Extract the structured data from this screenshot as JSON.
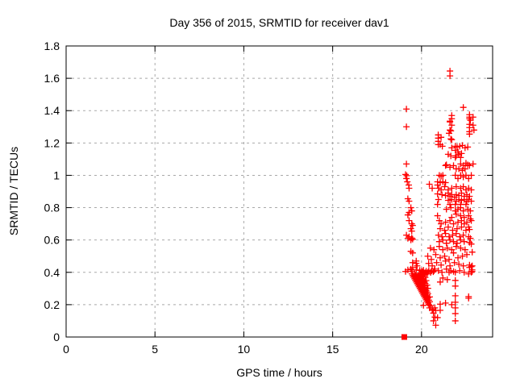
{
  "window_title": "gnuplot plot window",
  "colors": {
    "background": "#ffffff",
    "axis": "#000000",
    "grid": "#a9a9a9",
    "data": "#ff0000"
  },
  "chart_data": {
    "type": "scatter",
    "title": "Day 356 of 2015, SRMTID for receiver dav1",
    "xlabel": "GPS time / hours",
    "ylabel": "SRMTID / TECUs",
    "xlim": [
      0,
      24
    ],
    "ylim": [
      0,
      1.8
    ],
    "x_tick_values": [
      0,
      5,
      10,
      15,
      20
    ],
    "x_tick_labels": [
      "0",
      "5",
      "10",
      "15",
      "20"
    ],
    "y_tick_values": [
      0,
      0.2,
      0.4,
      0.6,
      0.8,
      1.0,
      1.2,
      1.4,
      1.6,
      1.8
    ],
    "y_tick_labels": [
      "0",
      "0.2",
      "0.4",
      "0.6",
      "0.8",
      "1",
      "1.2",
      "1.4",
      "1.6",
      "1.8"
    ],
    "grid": true,
    "legend_position": "none",
    "marker": {
      "shape": "plus",
      "color": "#ff0000",
      "size": 8
    },
    "square_marker": {
      "shape": "filled-square",
      "color": "#ff0000",
      "size": 7,
      "point": [
        19.03,
        0
      ]
    },
    "points": [
      [
        19.15,
        1.41
      ],
      [
        19.15,
        1.3
      ],
      [
        19.15,
        1.07
      ],
      [
        19.1,
        1.005
      ],
      [
        19.17,
        0.998
      ],
      [
        19.15,
        0.98
      ],
      [
        19.2,
        0.96
      ],
      [
        19.28,
        0.94
      ],
      [
        19.3,
        0.92
      ],
      [
        19.23,
        0.855
      ],
      [
        19.3,
        0.84
      ],
      [
        19.4,
        0.8
      ],
      [
        19.45,
        0.78
      ],
      [
        19.3,
        0.77
      ],
      [
        19.23,
        0.755
      ],
      [
        19.3,
        0.72
      ],
      [
        19.45,
        0.7
      ],
      [
        19.5,
        0.69
      ],
      [
        19.4,
        0.67
      ],
      [
        19.45,
        0.655
      ],
      [
        19.15,
        0.63
      ],
      [
        19.23,
        0.61
      ],
      [
        19.3,
        0.62
      ],
      [
        19.4,
        0.6
      ],
      [
        19.45,
        0.612
      ],
      [
        19.5,
        0.605
      ],
      [
        19.4,
        0.53
      ],
      [
        19.5,
        0.52
      ],
      [
        19.7,
        0.47
      ],
      [
        19.5,
        0.46
      ],
      [
        19.7,
        0.455
      ],
      [
        19.75,
        0.44
      ],
      [
        19.5,
        0.43
      ],
      [
        19.4,
        0.42
      ],
      [
        19.23,
        0.415
      ],
      [
        19.1,
        0.405
      ],
      [
        19.45,
        0.405
      ],
      [
        19.7,
        0.415
      ],
      [
        19.9,
        0.412
      ],
      [
        20.01,
        0.408
      ],
      [
        20.11,
        0.413
      ],
      [
        20.26,
        0.407
      ],
      [
        20.41,
        0.412
      ],
      [
        20.56,
        0.408
      ],
      [
        20.71,
        0.41
      ],
      [
        19.96,
        0.398
      ],
      [
        20.06,
        0.402
      ],
      [
        20.21,
        0.397
      ],
      [
        20.36,
        0.401
      ],
      [
        20.51,
        0.399
      ],
      [
        20.66,
        0.403
      ],
      [
        19.46,
        0.39
      ],
      [
        19.61,
        0.392
      ],
      [
        19.91,
        0.388
      ],
      [
        20.02,
        0.391
      ],
      [
        20.16,
        0.387
      ],
      [
        20.31,
        0.39
      ],
      [
        19.51,
        0.38
      ],
      [
        19.66,
        0.382
      ],
      [
        19.81,
        0.378
      ],
      [
        19.96,
        0.381
      ],
      [
        20.11,
        0.379
      ],
      [
        19.56,
        0.37
      ],
      [
        19.71,
        0.372
      ],
      [
        19.86,
        0.368
      ],
      [
        20.01,
        0.371
      ],
      [
        20.21,
        0.369
      ],
      [
        19.61,
        0.36
      ],
      [
        19.76,
        0.362
      ],
      [
        19.91,
        0.358
      ],
      [
        20.06,
        0.361
      ],
      [
        19.66,
        0.35
      ],
      [
        19.81,
        0.352
      ],
      [
        19.96,
        0.348
      ],
      [
        20.11,
        0.351
      ],
      [
        20.26,
        0.349
      ],
      [
        19.71,
        0.34
      ],
      [
        19.86,
        0.342
      ],
      [
        20.01,
        0.338
      ],
      [
        20.16,
        0.341
      ],
      [
        21.05,
        0.34
      ],
      [
        19.76,
        0.33
      ],
      [
        19.91,
        0.332
      ],
      [
        20.06,
        0.328
      ],
      [
        20.21,
        0.331
      ],
      [
        19.81,
        0.32
      ],
      [
        19.96,
        0.322
      ],
      [
        20.11,
        0.318
      ],
      [
        20.31,
        0.321
      ],
      [
        19.86,
        0.31
      ],
      [
        20.01,
        0.312
      ],
      [
        20.16,
        0.308
      ],
      [
        19.91,
        0.3
      ],
      [
        20.06,
        0.302
      ],
      [
        20.21,
        0.298
      ],
      [
        20.36,
        0.301
      ],
      [
        19.96,
        0.29
      ],
      [
        20.11,
        0.292
      ],
      [
        20.26,
        0.288
      ],
      [
        20.01,
        0.28
      ],
      [
        20.16,
        0.282
      ],
      [
        20.31,
        0.278
      ],
      [
        20.06,
        0.27
      ],
      [
        20.21,
        0.272
      ],
      [
        20.36,
        0.268
      ],
      [
        20.11,
        0.26
      ],
      [
        20.26,
        0.258
      ],
      [
        20.16,
        0.25
      ],
      [
        20.31,
        0.252
      ],
      [
        20.46,
        0.248
      ],
      [
        20.21,
        0.24
      ],
      [
        20.36,
        0.242
      ],
      [
        20.26,
        0.23
      ],
      [
        20.41,
        0.228
      ],
      [
        20.31,
        0.22
      ],
      [
        20.46,
        0.218
      ],
      [
        20.36,
        0.21
      ],
      [
        20.41,
        0.2
      ],
      [
        21.7,
        0.2
      ],
      [
        20.11,
        0.196
      ],
      [
        20.51,
        0.193
      ],
      [
        20.45,
        0.18
      ],
      [
        20.6,
        0.17
      ],
      [
        20.65,
        0.165
      ],
      [
        20.75,
        0.18
      ],
      [
        20.8,
        0.164
      ],
      [
        20.67,
        0.148
      ],
      [
        20.75,
        0.123
      ],
      [
        20.9,
        0.12
      ],
      [
        20.67,
        0.1
      ],
      [
        20.8,
        0.073
      ],
      [
        21.05,
        0.165
      ],
      [
        21.35,
        0.21
      ],
      [
        21.05,
        0.203
      ],
      [
        21.9,
        0.35
      ],
      [
        21.9,
        0.315
      ],
      [
        21.9,
        0.255
      ],
      [
        21.9,
        0.215
      ],
      [
        21.9,
        0.18
      ],
      [
        21.9,
        0.145
      ],
      [
        21.9,
        0.1
      ],
      [
        22.65,
        0.39
      ],
      [
        22.8,
        0.4
      ],
      [
        22.65,
        0.25
      ],
      [
        22.65,
        0.24
      ],
      [
        20.44,
        0.945
      ],
      [
        20.6,
        0.92
      ],
      [
        20.9,
        0.94
      ],
      [
        20.97,
        0.92
      ],
      [
        21.1,
        0.91
      ],
      [
        21.3,
        0.93
      ],
      [
        21.5,
        0.91
      ],
      [
        21.7,
        0.92
      ],
      [
        21.95,
        0.93
      ],
      [
        22.2,
        0.92
      ],
      [
        22.35,
        0.93
      ],
      [
        22.5,
        0.91
      ],
      [
        22.65,
        0.92
      ],
      [
        22.8,
        0.91
      ],
      [
        20.9,
        0.885
      ],
      [
        21.15,
        0.88
      ],
      [
        21.35,
        0.875
      ],
      [
        21.5,
        0.89
      ],
      [
        21.6,
        0.87
      ],
      [
        21.7,
        0.88
      ],
      [
        21.85,
        0.865
      ],
      [
        21.95,
        0.88
      ],
      [
        22.1,
        0.875
      ],
      [
        22.25,
        0.89
      ],
      [
        22.4,
        0.87
      ],
      [
        22.55,
        0.88
      ],
      [
        22.7,
        0.87
      ],
      [
        20.95,
        0.85
      ],
      [
        21.5,
        0.845
      ],
      [
        21.7,
        0.85
      ],
      [
        21.95,
        0.84
      ],
      [
        22.1,
        0.85
      ],
      [
        22.25,
        0.845
      ],
      [
        22.4,
        0.85
      ],
      [
        22.55,
        0.84
      ],
      [
        22.65,
        0.85
      ],
      [
        22.8,
        0.84
      ],
      [
        20.9,
        0.82
      ],
      [
        21.6,
        0.82
      ],
      [
        21.9,
        0.82
      ],
      [
        22.2,
        0.82
      ],
      [
        22.5,
        0.82
      ],
      [
        21.4,
        0.79
      ],
      [
        21.65,
        0.8
      ],
      [
        21.9,
        0.78
      ],
      [
        22.05,
        0.79
      ],
      [
        22.2,
        0.8
      ],
      [
        22.35,
        0.78
      ],
      [
        22.6,
        0.79
      ],
      [
        22.75,
        0.78
      ],
      [
        20.9,
        0.75
      ],
      [
        21.7,
        0.74
      ],
      [
        21.95,
        0.76
      ],
      [
        22.2,
        0.75
      ],
      [
        22.4,
        0.74
      ],
      [
        22.65,
        0.75
      ],
      [
        21.0,
        0.72
      ],
      [
        21.1,
        0.7
      ],
      [
        21.35,
        0.71
      ],
      [
        21.6,
        0.72
      ],
      [
        21.8,
        0.7
      ],
      [
        22.05,
        0.71
      ],
      [
        22.25,
        0.72
      ],
      [
        22.4,
        0.7
      ],
      [
        22.55,
        0.71
      ],
      [
        22.75,
        0.73
      ],
      [
        22.8,
        0.72
      ],
      [
        21.05,
        0.67
      ],
      [
        21.3,
        0.66
      ],
      [
        21.5,
        0.68
      ],
      [
        21.75,
        0.66
      ],
      [
        22.0,
        0.67
      ],
      [
        22.25,
        0.68
      ],
      [
        22.5,
        0.66
      ],
      [
        22.65,
        0.68
      ],
      [
        22.7,
        0.665
      ],
      [
        20.95,
        0.63
      ],
      [
        21.15,
        0.62
      ],
      [
        21.35,
        0.64
      ],
      [
        21.55,
        0.62
      ],
      [
        21.75,
        0.63
      ],
      [
        21.95,
        0.64
      ],
      [
        22.15,
        0.62
      ],
      [
        22.35,
        0.63
      ],
      [
        22.65,
        0.62
      ],
      [
        22.75,
        0.61
      ],
      [
        21.0,
        0.59
      ],
      [
        21.2,
        0.6
      ],
      [
        21.4,
        0.58
      ],
      [
        21.6,
        0.6
      ],
      [
        21.8,
        0.59
      ],
      [
        22.0,
        0.58
      ],
      [
        22.2,
        0.6
      ],
      [
        22.4,
        0.59
      ],
      [
        22.7,
        0.585
      ],
      [
        22.8,
        0.575
      ],
      [
        20.5,
        0.55
      ],
      [
        20.7,
        0.54
      ],
      [
        21.0,
        0.56
      ],
      [
        21.2,
        0.54
      ],
      [
        21.45,
        0.55
      ],
      [
        21.7,
        0.54
      ],
      [
        21.95,
        0.56
      ],
      [
        22.2,
        0.55
      ],
      [
        22.45,
        0.54
      ],
      [
        22.85,
        0.525
      ],
      [
        20.35,
        0.5
      ],
      [
        20.55,
        0.48
      ],
      [
        20.8,
        0.51
      ],
      [
        21.05,
        0.49
      ],
      [
        21.3,
        0.5
      ],
      [
        21.55,
        0.48
      ],
      [
        21.8,
        0.52
      ],
      [
        22.05,
        0.49
      ],
      [
        22.3,
        0.5
      ],
      [
        22.55,
        0.51
      ],
      [
        20.4,
        0.455
      ],
      [
        20.6,
        0.44
      ],
      [
        20.85,
        0.46
      ],
      [
        21.1,
        0.445
      ],
      [
        21.35,
        0.47
      ],
      [
        21.6,
        0.44
      ],
      [
        21.85,
        0.46
      ],
      [
        22.1,
        0.45
      ],
      [
        22.35,
        0.44
      ],
      [
        22.7,
        0.445
      ],
      [
        22.8,
        0.435
      ],
      [
        22.85,
        0.44
      ],
      [
        20.75,
        0.42
      ],
      [
        20.95,
        0.41
      ],
      [
        21.15,
        0.4
      ],
      [
        21.4,
        0.42
      ],
      [
        21.55,
        0.4
      ],
      [
        21.65,
        0.41
      ],
      [
        21.8,
        0.405
      ],
      [
        21.9,
        0.4
      ],
      [
        22.15,
        0.41
      ],
      [
        22.4,
        0.4
      ],
      [
        22.7,
        0.43
      ],
      [
        22.85,
        0.415
      ],
      [
        22.85,
        0.405
      ],
      [
        21.2,
        0.365
      ],
      [
        21.45,
        0.355
      ],
      [
        20.94,
        1.25
      ],
      [
        20.94,
        1.23
      ],
      [
        20.94,
        1.21
      ],
      [
        20.94,
        1.19
      ],
      [
        21.05,
        1.19
      ],
      [
        21.17,
        1.18
      ],
      [
        21.1,
        1.235
      ],
      [
        21.65,
        1.225
      ],
      [
        21.7,
        1.22
      ],
      [
        21.9,
        1.18
      ],
      [
        22.0,
        1.175
      ],
      [
        22.15,
        1.18
      ],
      [
        22.3,
        1.185
      ],
      [
        22.45,
        1.17
      ],
      [
        22.6,
        1.175
      ],
      [
        21.7,
        1.17
      ],
      [
        21.9,
        1.155
      ],
      [
        22.05,
        1.145
      ],
      [
        22.1,
        1.13
      ],
      [
        22.25,
        1.135
      ],
      [
        21.95,
        1.12
      ],
      [
        21.5,
        1.13
      ],
      [
        21.65,
        1.12
      ],
      [
        21.9,
        1.11
      ],
      [
        22.2,
        1.11
      ],
      [
        21.35,
        1.06
      ],
      [
        21.4,
        1.065
      ],
      [
        21.6,
        1.05
      ],
      [
        21.8,
        1.06
      ],
      [
        22.2,
        1.07
      ],
      [
        22.35,
        1.06
      ],
      [
        22.5,
        1.075
      ],
      [
        22.6,
        1.065
      ],
      [
        22.7,
        1.06
      ],
      [
        22.9,
        1.07
      ],
      [
        21.95,
        1.04
      ],
      [
        22.1,
        1.04
      ],
      [
        22.3,
        1.03
      ],
      [
        22.45,
        1.04
      ],
      [
        21.0,
        1.0
      ],
      [
        21.1,
        0.995
      ],
      [
        21.2,
        1.0
      ],
      [
        21.9,
        1.0
      ],
      [
        22.05,
        0.98
      ],
      [
        22.2,
        1.0
      ],
      [
        22.35,
        0.99
      ],
      [
        22.5,
        1.0
      ],
      [
        22.65,
        0.98
      ],
      [
        22.8,
        1.0
      ],
      [
        20.9,
        0.96
      ],
      [
        21.05,
        0.955
      ],
      [
        21.2,
        0.96
      ],
      [
        21.35,
        0.955
      ],
      [
        21.55,
        1.26
      ],
      [
        21.6,
        1.28
      ],
      [
        21.65,
        1.275
      ],
      [
        21.6,
        1.33
      ],
      [
        21.7,
        1.31
      ],
      [
        21.6,
        1.335
      ],
      [
        21.7,
        1.35
      ],
      [
        21.7,
        1.37
      ],
      [
        22.7,
        1.36
      ],
      [
        22.75,
        1.34
      ],
      [
        22.7,
        1.315
      ],
      [
        22.7,
        1.295
      ],
      [
        22.7,
        1.27
      ],
      [
        22.7,
        1.255
      ],
      [
        22.9,
        1.36
      ],
      [
        22.9,
        1.31
      ],
      [
        22.95,
        1.28
      ],
      [
        22.35,
        1.42
      ],
      [
        22.7,
        1.375
      ],
      [
        22.7,
        1.35
      ],
      [
        21.6,
        1.645
      ],
      [
        21.6,
        1.615
      ]
    ]
  }
}
